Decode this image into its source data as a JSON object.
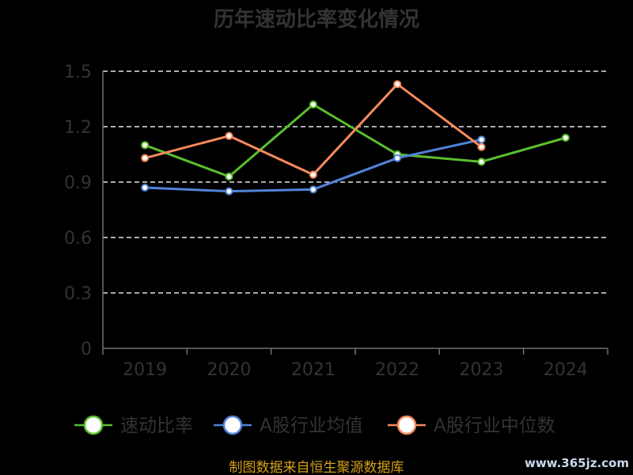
{
  "chart_data": {
    "type": "line",
    "title": "历年速动比率变化情况",
    "categories": [
      "2019",
      "2020",
      "2021",
      "2022",
      "2023",
      "2024"
    ],
    "ylim": [
      0,
      1.5
    ],
    "yticks": [
      "0",
      "0.3",
      "0.6",
      "0.9",
      "1.2",
      "1.5"
    ],
    "grid": true,
    "legend_position": "bottom",
    "series": [
      {
        "name": "速动比率",
        "color": "#5bbf2e",
        "values": [
          1.1,
          0.93,
          1.32,
          1.05,
          1.01,
          1.14
        ]
      },
      {
        "name": "A股行业均值",
        "color": "#5183d8",
        "values": [
          0.87,
          0.85,
          0.86,
          1.03,
          1.13,
          null
        ]
      },
      {
        "name": "A股行业中位数",
        "color": "#f58a5d",
        "values": [
          1.03,
          1.15,
          0.94,
          1.43,
          1.09,
          null
        ]
      }
    ]
  },
  "source": "制图数据来自恒生聚源数据库",
  "watermark": "www.365jz.com"
}
